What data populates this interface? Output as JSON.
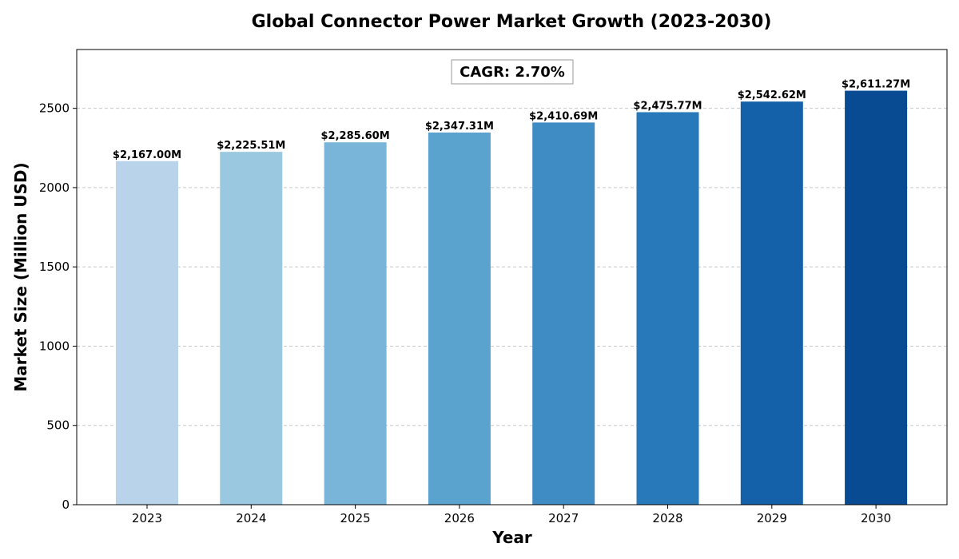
{
  "chart_data": {
    "type": "bar",
    "title": "Global Connector Power Market Growth (2023-2030)",
    "xlabel": "Year",
    "ylabel": "Market Size (Million USD)",
    "categories": [
      "2023",
      "2024",
      "2025",
      "2026",
      "2027",
      "2028",
      "2029",
      "2030"
    ],
    "values": [
      2167.0,
      2225.51,
      2285.6,
      2347.31,
      2410.69,
      2475.77,
      2542.62,
      2611.27
    ],
    "data_labels": [
      "$2,167.00M",
      "$2,225.51M",
      "$2,285.60M",
      "$2,347.31M",
      "$2,410.69M",
      "$2,475.77M",
      "$2,542.62M",
      "$2,611.27M"
    ],
    "yticks": [
      0,
      500,
      1000,
      1500,
      2000,
      2500
    ],
    "ylim": [
      0,
      2871
    ],
    "grid": "horizontal dashed",
    "annotation": "CAGR: 2.70%",
    "colors": [
      "#b9d4ea",
      "#9ac8e0",
      "#79b5d9",
      "#5ba3cf",
      "#3f8cc4",
      "#2879b9",
      "#1461aa",
      "#084b93"
    ]
  }
}
